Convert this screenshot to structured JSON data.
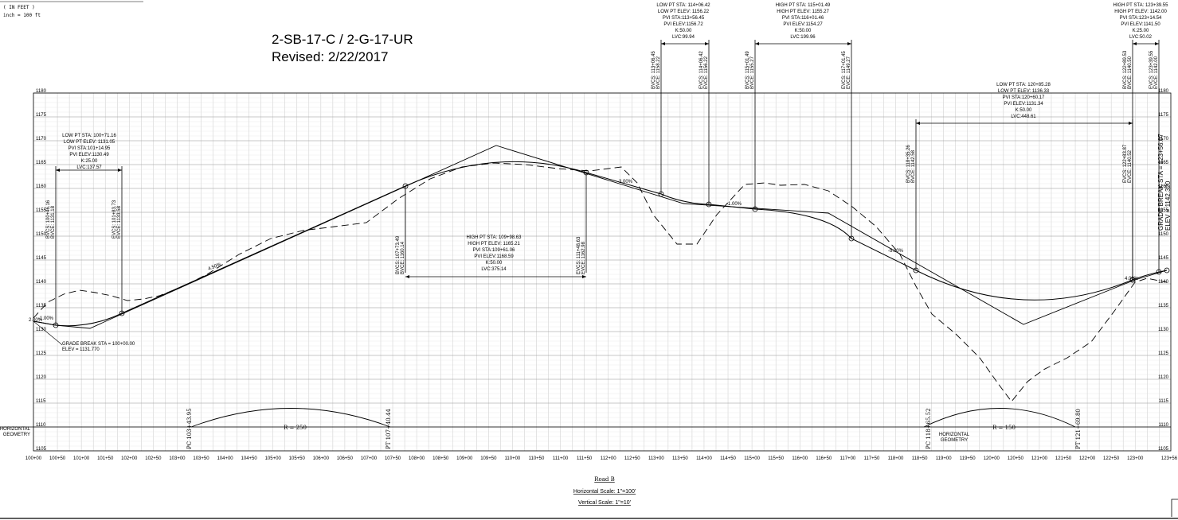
{
  "header": {
    "scale_lines": [
      "( IN FEET )",
      "inch = 100 ft"
    ]
  },
  "title": {
    "line1": "2-SB-17-C / 2-G-17-UR",
    "line2": "Revised: 2/22/2017"
  },
  "elevations": [
    1105,
    1110,
    1115,
    1120,
    1125,
    1130,
    1135,
    1140,
    1145,
    1150,
    1155,
    1160,
    1165,
    1170,
    1175,
    1180
  ],
  "stations": [
    "100+00",
    "100+50",
    "101+00",
    "101+50",
    "102+00",
    "102+50",
    "103+00",
    "103+50",
    "104+00",
    "104+50",
    "105+00",
    "105+50",
    "106+00",
    "106+50",
    "107+00",
    "107+50",
    "108+00",
    "108+50",
    "109+00",
    "109+50",
    "110+00",
    "110+50",
    "111+00",
    "111+50",
    "112+00",
    "112+50",
    "113+00",
    "113+50",
    "114+00",
    "114+50",
    "115+00",
    "115+50",
    "116+00",
    "116+50",
    "117+00",
    "117+50",
    "118+00",
    "118+50",
    "119+00",
    "119+50",
    "120+00",
    "120+50",
    "121+00",
    "121+50",
    "122+00",
    "122+50",
    "123+00",
    "123+56"
  ],
  "vertical_curves": [
    {
      "info": [
        "LOW PT STA: 100+71.16",
        "LOW PT ELEV: 1131.05",
        "PVI STA:101+14.95",
        "PVI ELEV:1130.49",
        "K:25.00",
        "LVC:137.57"
      ],
      "bvc": [
        "BVCS: 100+46.16",
        "BVCE: 1131.18"
      ],
      "evc": [
        "EVCS: 101+83.73",
        "EVCE: 1133.58"
      ]
    },
    {
      "info": [
        "HIGH PT STA: 109+98.63",
        "HIGH PT ELEV: 1165.21",
        "PVI STA:109+61.06",
        "PVI ELEV:1168.59",
        "K:50.00",
        "LVC:375.14"
      ],
      "bvc": [
        "BVCS: 107+73.49",
        "BVCE: 1160.14"
      ],
      "evc": [
        "EVCS: 111+48.63",
        "EVCE: 1162.98"
      ]
    },
    {
      "info": [
        "LOW PT STA: 114+06.42",
        "LOW PT ELEV: 1156.22",
        "PVI STA:113+56.45",
        "PVI ELEV:1156.72",
        "K:50.00",
        "LVC:99.94"
      ],
      "bvc": [
        "BVCS: 113+06.45",
        "BVCE: 1158.22"
      ],
      "evc": [
        "EVCS: 114+06.42",
        "EVCE: 1156.22"
      ]
    },
    {
      "info": [
        "HIGH PT STA: 115+01.49",
        "HIGH PT ELEV: 1155.27",
        "PVI STA:116+01.46",
        "PVI ELEV:1154.27",
        "K:50.00",
        "LVC:199.96"
      ],
      "bvc": [
        "BVCS: 115+01.49",
        "BVCE: 1155.27"
      ],
      "evc": [
        "EVCS: 117+01.45",
        "EVCE: 1149.27"
      ]
    },
    {
      "info": [
        "LOW PT STA: 120+85.28",
        "LOW PT ELEV: 1136.33",
        "PVI STA:120+60.17",
        "PVI ELEV:1131.34",
        "K:50.00",
        "LVC:448.61"
      ],
      "bvc": [
        "BVCS: 118+35.26",
        "BVCE: 1142.58"
      ],
      "evc": [
        "EVCS: 122+83.87",
        "EVCE: 1140.52"
      ]
    },
    {
      "info": [
        "HIGH PT STA: 123+39.55",
        "HIGH PT ELEV: 1142.00",
        "PVI STA:123+14.54",
        "PVI ELEV:1141.50",
        "K:25.00",
        "LVC:50.02"
      ],
      "bvc": [
        "BVCS: 122+89.53",
        "BVCE: 1140.50"
      ],
      "evc": [
        "EVCS: 123+39.55",
        "EVCE: 1142.00"
      ]
    }
  ],
  "grades": [
    "-1.00%",
    "4.50%",
    "-3.00%",
    "-1.00%",
    "-5.00%",
    "4.00%",
    "2.00%"
  ],
  "grade_breaks": {
    "start": [
      "GRADE BREAK STA = 100+00.00",
      "ELEV = 1131.770"
    ],
    "end": [
      "GRADE BREAK STA = 123+56.07",
      "ELEV = 1142.320"
    ]
  },
  "horizontal_geometry": {
    "label": [
      "HORIZONTAL",
      "GEOMETRY"
    ],
    "curves": [
      {
        "radius": "R = 250",
        "pc": "PC 103+43.95",
        "pt": "PT 107+40.44"
      },
      {
        "radius": "R = 150",
        "pc": "PC 118+65.52",
        "pt": "PT 121+69.80"
      }
    ]
  },
  "footer": {
    "road": "Road B",
    "hscale": "Horizontal Scale: 1\"=100'",
    "vscale": "Vertical Scale: 1\"=10'"
  }
}
